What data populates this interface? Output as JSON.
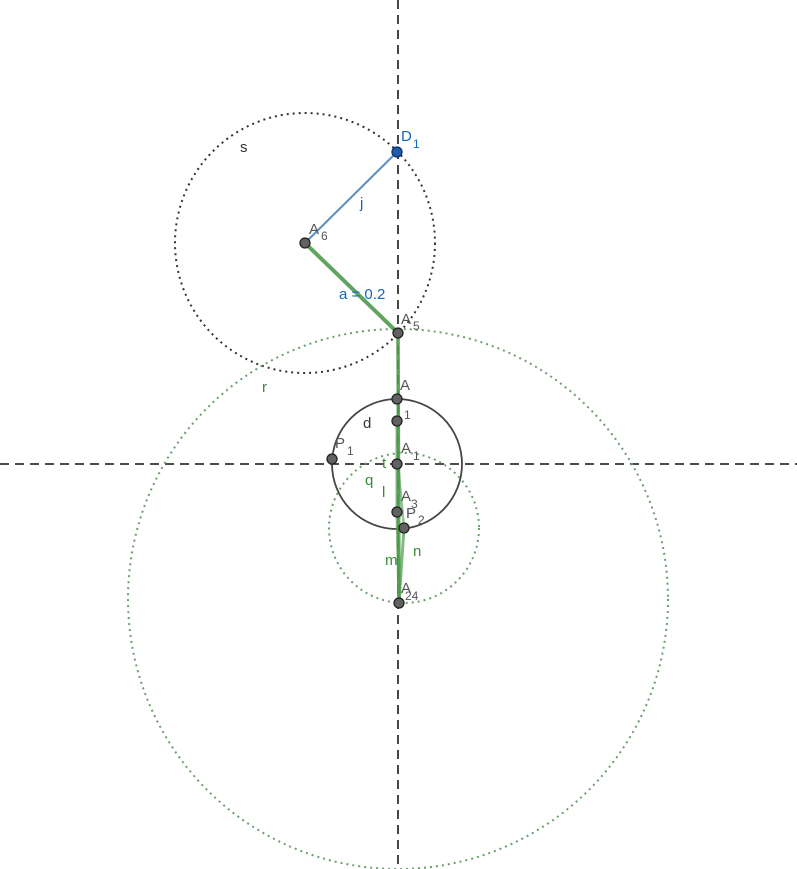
{
  "colors": {
    "axis": "#333333",
    "circle_black": "#333333",
    "circle_green": "#6aa06a",
    "segment_green": "#4f9a4f",
    "segment_blue": "#5b8fc0",
    "point": "#616161",
    "point_blue": "#1e5ba8"
  },
  "labels": {
    "s": "s",
    "d1_main": "D",
    "d1_sub": "1",
    "j": "j",
    "a6_main": "A",
    "a6_sub": "6",
    "a_eq": "a = 0.2",
    "a5_main": "A",
    "a5_sub": "5",
    "r": "r",
    "a_top": "A",
    "i1": "1",
    "d": "d",
    "p1_main": "P",
    "p1_sub": "1",
    "a1_main": "A",
    "a1_sub": "1",
    "t": "t",
    "q": "q",
    "l": "l",
    "a3_main": "A",
    "a3_sub": "3",
    "p2_main": "P",
    "p2_sub": "2",
    "n": "n",
    "m": "m",
    "a24_main": "A",
    "a24_sub": "24"
  }
}
